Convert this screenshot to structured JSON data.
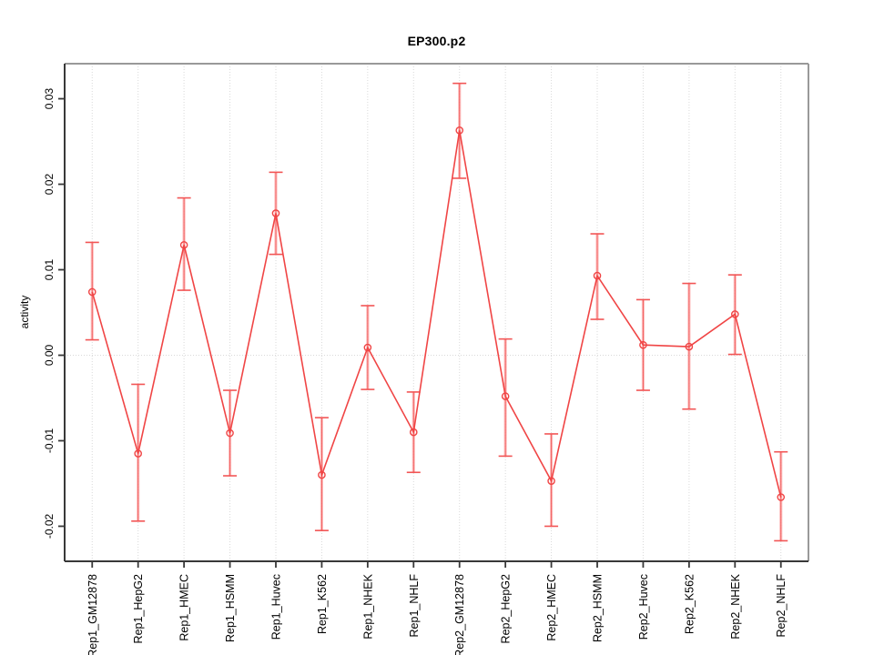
{
  "figure": {
    "title": "EP300.p2",
    "y_axis_label": "activity"
  },
  "chart_data": {
    "type": "line",
    "title": "EP300.p2",
    "xlabel": "",
    "ylabel": "activity",
    "legend": "none",
    "grid": "dotted vertical line per category + dotted horizontal line at 0",
    "marker": "open-circle",
    "categories": [
      "Rep1_GM12878",
      "Rep1_HepG2",
      "Rep1_HMEC",
      "Rep1_HSMM",
      "Rep1_Huvec",
      "Rep1_K562",
      "Rep1_NHEK",
      "Rep1_NHLF",
      "Rep2_GM12878",
      "Rep2_HepG2",
      "Rep2_HMEC",
      "Rep2_HSMM",
      "Rep2_Huvec",
      "Rep2_K562",
      "Rep2_NHEK",
      "Rep2_NHLF"
    ],
    "series": [
      {
        "name": "activity",
        "values": [
          0.0074,
          -0.0115,
          0.0129,
          -0.0091,
          0.0166,
          -0.014,
          0.0009,
          -0.009,
          0.0263,
          -0.0048,
          -0.0147,
          0.0093,
          0.0012,
          0.001,
          0.0048,
          -0.0166
        ],
        "upper": [
          0.0132,
          -0.0034,
          0.0184,
          -0.0041,
          0.0214,
          -0.0073,
          0.0058,
          -0.0043,
          0.0318,
          0.0019,
          -0.0092,
          0.0142,
          0.0065,
          0.0084,
          0.0094,
          -0.0113
        ],
        "lower": [
          0.0018,
          -0.0194,
          0.0076,
          -0.0141,
          0.0118,
          -0.0205,
          -0.004,
          -0.0137,
          0.0207,
          -0.0118,
          -0.02,
          0.0042,
          -0.0041,
          -0.0063,
          0.0001,
          -0.0217
        ]
      }
    ],
    "ylim": [
      -0.0241,
      0.0341
    ],
    "yticks": [
      -0.02,
      -0.01,
      0,
      0.01,
      0.02,
      0.03
    ],
    "ytick_labels": [
      "-0.02",
      "-0.01",
      "0.00",
      "0.01",
      "0.02",
      "0.03"
    ],
    "colors": {
      "line": "#f04545",
      "marker": "#f04545",
      "error_band": "#fc8181",
      "error_cap": "#f25555",
      "grid": "#d9d9d9",
      "box_light": "#999999",
      "axis_dark": "#383838",
      "text": "#000000"
    }
  }
}
